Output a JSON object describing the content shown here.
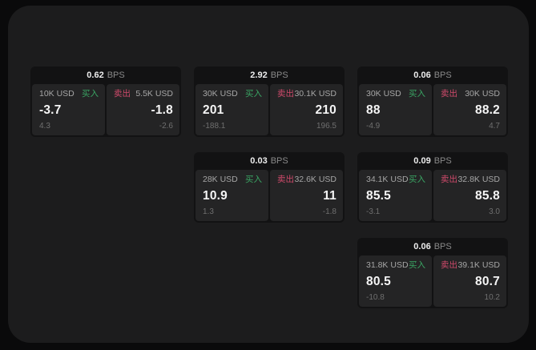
{
  "labels": {
    "bps_unit": "BPS",
    "buy": "买入",
    "sell": "卖出"
  },
  "colors": {
    "buy_green": "#3aa563",
    "sell_red": "#cf4a6b",
    "page_bg": "#0a0a0b",
    "container_bg": "#1c1c1d",
    "card_bg": "#121213",
    "panel_bg": "#242425"
  },
  "cards": [
    {
      "bps": "0.62",
      "buy": {
        "amount": "10K USD",
        "price": "-3.7",
        "sub": "4.3"
      },
      "sell": {
        "amount": "5.5K USD",
        "price": "-1.8",
        "sub": "-2.6"
      }
    },
    {
      "bps": "2.92",
      "buy": {
        "amount": "30K USD",
        "price": "201",
        "sub": "-188.1"
      },
      "sell": {
        "amount": "30.1K USD",
        "price": "210",
        "sub": "196.5"
      }
    },
    {
      "bps": "0.06",
      "buy": {
        "amount": "30K USD",
        "price": "88",
        "sub": "-4.9"
      },
      "sell": {
        "amount": "30K USD",
        "price": "88.2",
        "sub": "4.7"
      }
    },
    {
      "bps": "0.03",
      "buy": {
        "amount": "28K USD",
        "price": "10.9",
        "sub": "1.3"
      },
      "sell": {
        "amount": "32.6K USD",
        "price": "11",
        "sub": "-1.8"
      }
    },
    {
      "bps": "0.09",
      "buy": {
        "amount": "34.1K USD",
        "price": "85.5",
        "sub": "-3.1"
      },
      "sell": {
        "amount": "32.8K USD",
        "price": "85.8",
        "sub": "3.0"
      }
    },
    {
      "bps": "0.06",
      "buy": {
        "amount": "31.8K USD",
        "price": "80.5",
        "sub": "-10.8"
      },
      "sell": {
        "amount": "39.1K USD",
        "price": "80.7",
        "sub": "10.2"
      }
    }
  ]
}
